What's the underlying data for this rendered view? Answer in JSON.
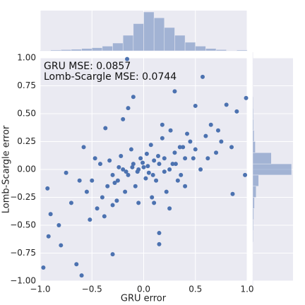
{
  "chart_data": [
    {
      "type": "scatter",
      "xlabel": "GRU error",
      "ylabel": "Lomb-Scargle error",
      "annotations": [
        "GRU MSE: 0.0857",
        "Lomb-Scargle MSE: 0.0744"
      ],
      "color": "#4c72b0",
      "grid": true,
      "xlim": [
        -1.0,
        1.0
      ],
      "ylim": [
        -1.0,
        1.0
      ],
      "xticks": [
        {
          "value": -1.0,
          "label": "−1.0"
        },
        {
          "value": -0.5,
          "label": "−0.5"
        },
        {
          "value": 0.0,
          "label": "0.0"
        },
        {
          "value": 0.5,
          "label": "0.5"
        },
        {
          "value": 1.0,
          "label": "1.0"
        }
      ],
      "yticks": [
        {
          "value": -1.0,
          "label": "−1.00"
        },
        {
          "value": -0.75,
          "label": "−0.75"
        },
        {
          "value": -0.5,
          "label": "−0.50"
        },
        {
          "value": -0.25,
          "label": "−0.25"
        },
        {
          "value": 0.0,
          "label": "0.00"
        },
        0.25,
        {
          "value": 0.5,
          "label": "0.50"
        },
        0.75,
        {
          "value": 1.0,
          "label": "1.00"
        }
      ],
      "x": [
        -0.97,
        -0.6,
        -0.16,
        0.57,
        0.99,
        0.98,
        0.15,
        0.15,
        -0.3,
        -0.65,
        -0.92,
        -0.8,
        -0.9,
        -0.93,
        -0.75,
        -0.37,
        -0.1,
        -0.15,
        0.3,
        0.5,
        0.8,
        0.9,
        0.85,
        0.86,
        -0.82,
        -0.7,
        -0.55,
        -0.45,
        -0.5,
        -0.4,
        -0.35,
        -0.3,
        -0.25,
        -0.2,
        -0.15,
        -0.1,
        -0.05,
        0.0,
        0.05,
        0.1,
        0.15,
        0.2,
        0.25,
        0.3,
        0.35,
        0.4,
        0.45,
        0.5,
        0.6,
        0.7,
        -0.42,
        -0.33,
        -0.28,
        -0.22,
        -0.18,
        -0.12,
        -0.08,
        -0.03,
        0.02,
        0.07,
        0.12,
        0.18,
        0.22,
        0.28,
        0.33,
        0.38,
        0.42,
        0.55,
        0.65,
        0.75,
        -0.38,
        -0.3,
        -0.24,
        -0.17,
        -0.11,
        -0.06,
        -0.01,
        0.04,
        0.09,
        0.14,
        0.2,
        0.26,
        0.31,
        0.36,
        0.48,
        -0.52,
        -0.47,
        -0.58,
        -0.62,
        0.1,
        0.25,
        0.4,
        0.62,
        0.72,
        -0.2,
        -0.05,
        0.08,
        0.18,
        -0.26,
        0.03
      ],
      "y": [
        -0.88,
        -0.95,
        0.99,
        0.83,
        0.64,
        -0.05,
        -0.67,
        -0.57,
        -0.76,
        -0.85,
        -0.6,
        -0.68,
        -0.4,
        -0.17,
        -0.03,
        0.37,
        0.65,
        0.55,
        0.7,
        0.57,
        0.58,
        0.52,
        0.2,
        -0.22,
        -0.5,
        -0.3,
        -0.2,
        -0.35,
        -0.1,
        -0.25,
        -0.15,
        -0.05,
        -0.1,
        0.0,
        -0.05,
        0.05,
        0.0,
        0.02,
        -0.03,
        0.08,
        0.05,
        0.1,
        0.0,
        0.15,
        0.2,
        0.1,
        0.25,
        0.18,
        0.3,
        0.15,
        0.05,
        0.08,
        -0.12,
        0.12,
        -0.2,
        0.18,
        -0.15,
        0.1,
        -0.08,
        0.22,
        -0.1,
        0.28,
        -0.2,
        0.05,
        -0.1,
        0.2,
        0.32,
        0.0,
        0.4,
        0.25,
        -0.42,
        -0.32,
        0.02,
        -0.02,
        0.02,
        -0.02,
        0.06,
        0.03,
        -0.05,
        0.12,
        -0.02,
        0.35,
        0.05,
        -0.05,
        0.1,
        -0.45,
        0.1,
        0.2,
        -0.1,
        -0.3,
        -0.35,
        -0.15,
        0.1,
        0.35,
        0.45,
        -0.3,
        -0.25,
        0.4,
        -0.28,
        0.14
      ]
    },
    {
      "type": "histogram",
      "orientation": "vertical",
      "color": "#4c72b0",
      "bins": [
        -1.0,
        -0.9,
        -0.8,
        -0.7,
        -0.6,
        -0.5,
        -0.4,
        -0.3,
        -0.2,
        -0.1,
        0.0,
        0.1,
        0.2,
        0.3,
        0.4,
        0.5,
        0.6,
        0.7,
        0.8,
        0.9,
        1.0
      ],
      "counts": [
        1,
        2,
        3,
        4,
        6,
        8,
        12,
        20,
        40,
        70,
        100,
        85,
        60,
        40,
        22,
        12,
        6,
        3,
        1,
        2
      ]
    },
    {
      "type": "histogram",
      "orientation": "horizontal",
      "color": "#4c72b0",
      "bins": [
        -1.05,
        -0.95,
        -0.85,
        -0.75,
        -0.65,
        -0.55,
        -0.45,
        -0.35,
        -0.25,
        -0.15,
        -0.05,
        0.05,
        0.15,
        0.25,
        0.35,
        0.45,
        0.55,
        0.65,
        0.75,
        0.85,
        0.95,
        1.05
      ],
      "counts": [
        1,
        1,
        2,
        2,
        3,
        4,
        6,
        10,
        20,
        35,
        230,
        110,
        15,
        8,
        5,
        4,
        3,
        2,
        1,
        1,
        1
      ]
    }
  ]
}
